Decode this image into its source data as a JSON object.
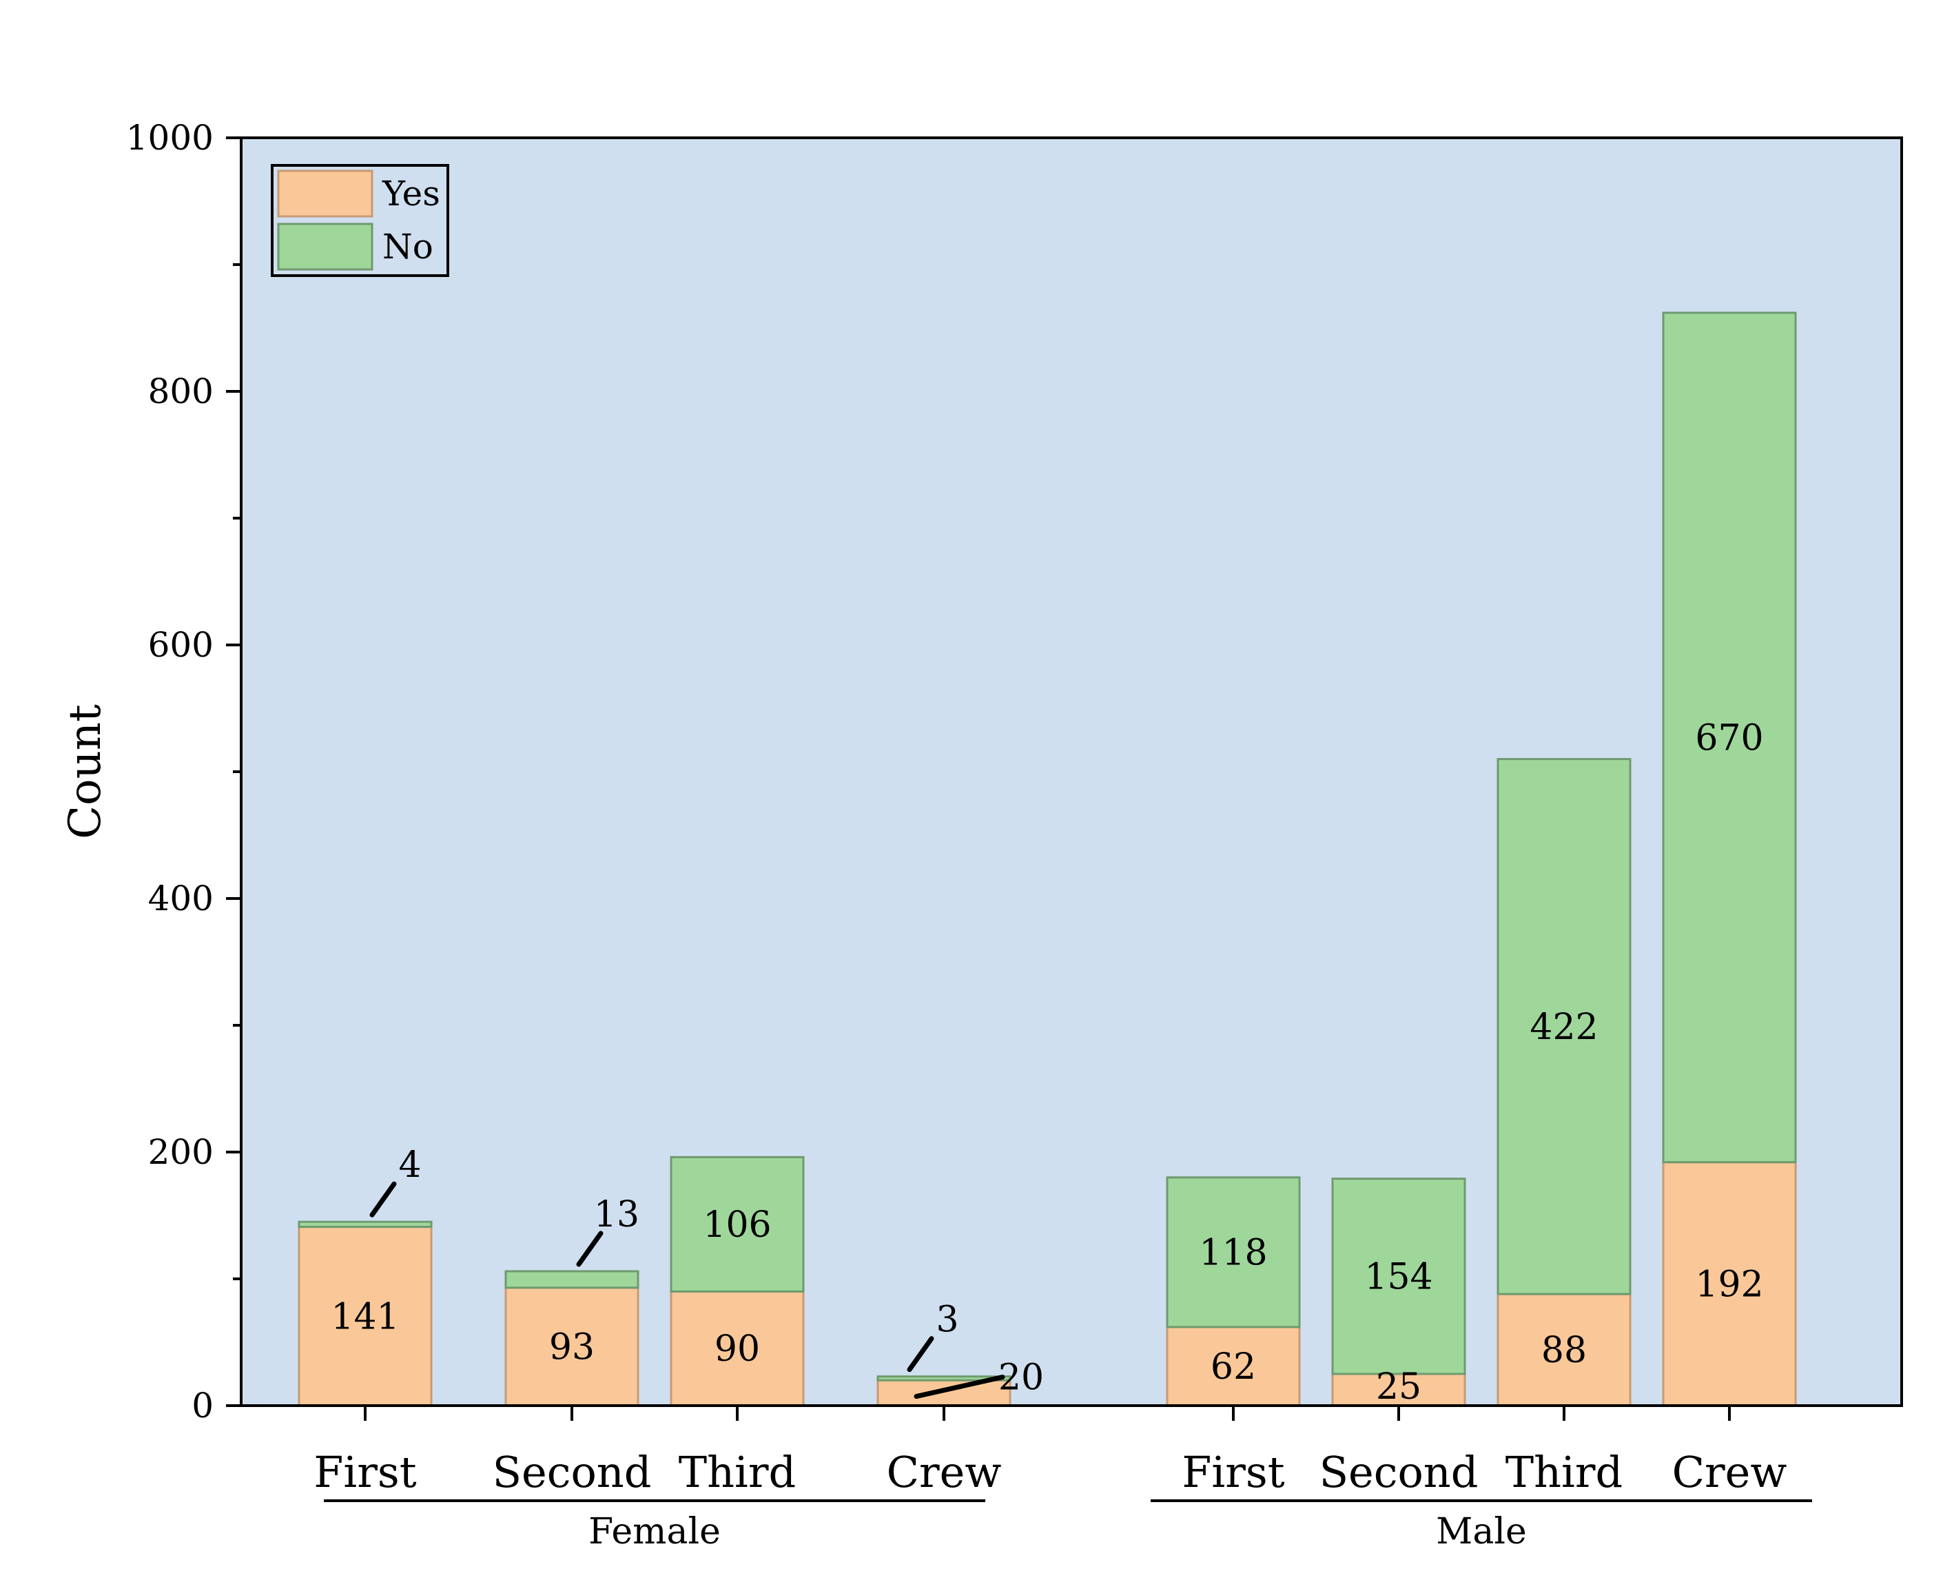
{
  "chart_data": {
    "type": "bar",
    "stacked": true,
    "ylabel": "Count",
    "ylim": [
      0,
      1000
    ],
    "yticks": [
      0,
      200,
      400,
      600,
      800,
      1000
    ],
    "groups": [
      {
        "name": "Female",
        "categories": [
          "First",
          "Second",
          "Third",
          "Crew"
        ]
      },
      {
        "name": "Male",
        "categories": [
          "First",
          "Second",
          "Third",
          "Crew"
        ]
      }
    ],
    "series": [
      {
        "name": "Yes",
        "color": "#fac898",
        "values": [
          141,
          93,
          90,
          20,
          62,
          25,
          88,
          192
        ]
      },
      {
        "name": "No",
        "color": "#9fd79b",
        "values": [
          4,
          13,
          106,
          3,
          118,
          154,
          422,
          670
        ]
      }
    ],
    "legend": {
      "position": "top-left",
      "items": [
        "Yes",
        "No"
      ]
    },
    "colors": {
      "plot_background": "#cfdfef",
      "bar_stroke": "#6f9a6f",
      "yes_stroke": "#c89a74"
    }
  }
}
